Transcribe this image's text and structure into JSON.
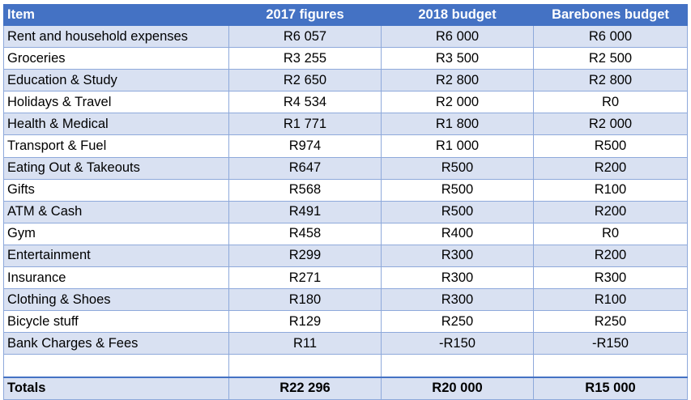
{
  "header": {
    "item": "Item",
    "col_2017": "2017 figures",
    "col_2018": "2018 budget",
    "col_barebones": "Barebones budget"
  },
  "rows": [
    {
      "item": "Rent and household expenses",
      "v2017": "R6 057",
      "v2018": "R6 000",
      "bare": "R6 000"
    },
    {
      "item": "Groceries",
      "v2017": "R3 255",
      "v2018": "R3 500",
      "bare": "R2 500"
    },
    {
      "item": "Education & Study",
      "v2017": "R2 650",
      "v2018": "R2 800",
      "bare": "R2 800"
    },
    {
      "item": "Holidays & Travel",
      "v2017": "R4 534",
      "v2018": "R2 000",
      "bare": "R0"
    },
    {
      "item": "Health & Medical",
      "v2017": "R1 771",
      "v2018": "R1 800",
      "bare": "R2 000"
    },
    {
      "item": "Transport & Fuel",
      "v2017": "R974",
      "v2018": "R1 000",
      "bare": "R500"
    },
    {
      "item": "Eating Out & Takeouts",
      "v2017": "R647",
      "v2018": "R500",
      "bare": "R200"
    },
    {
      "item": "Gifts",
      "v2017": "R568",
      "v2018": "R500",
      "bare": "R100"
    },
    {
      "item": "ATM & Cash",
      "v2017": "R491",
      "v2018": "R500",
      "bare": "R200"
    },
    {
      "item": "Gym",
      "v2017": "R458",
      "v2018": "R400",
      "bare": "R0"
    },
    {
      "item": "Entertainment",
      "v2017": "R299",
      "v2018": "R300",
      "bare": "R200"
    },
    {
      "item": "Insurance",
      "v2017": "R271",
      "v2018": "R300",
      "bare": "R300"
    },
    {
      "item": "Clothing & Shoes",
      "v2017": "R180",
      "v2018": "R300",
      "bare": "R100"
    },
    {
      "item": "Bicycle stuff",
      "v2017": "R129",
      "v2018": "R250",
      "bare": "R250"
    },
    {
      "item": "Bank Charges & Fees",
      "v2017": "R11",
      "v2018": "-R150",
      "bare": "-R150"
    }
  ],
  "totals": {
    "label": "Totals",
    "v2017": "R22 296",
    "v2018": "R20 000",
    "bare": "R15 000"
  },
  "colors": {
    "header_bg": "#4472c4",
    "band_bg": "#d9e1f2",
    "border": "#8ea9db"
  }
}
